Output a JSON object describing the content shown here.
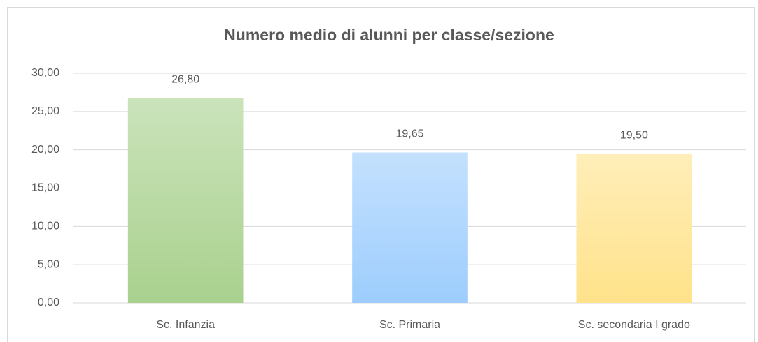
{
  "chart_data": {
    "type": "bar",
    "title": "Numero medio di alunni per classe/sezione",
    "categories": [
      "Sc. Infanzia",
      "Sc. Primaria",
      "Sc. secondaria I grado"
    ],
    "values": [
      26.8,
      19.65,
      19.5
    ],
    "value_labels": [
      "26,80",
      "19,65",
      "19,50"
    ],
    "colors": [
      "#a9d18e",
      "#9dcdfd",
      "#ffe28a"
    ],
    "ylim": [
      0,
      30
    ],
    "yticks": [
      {
        "value": 0,
        "label": "0,00"
      },
      {
        "value": 5,
        "label": "5,00"
      },
      {
        "value": 10,
        "label": "10,00"
      },
      {
        "value": 15,
        "label": "15,00"
      },
      {
        "value": 20,
        "label": "20,00"
      },
      {
        "value": 25,
        "label": "25,00"
      },
      {
        "value": 30,
        "label": "30,00"
      }
    ],
    "grid": true
  }
}
